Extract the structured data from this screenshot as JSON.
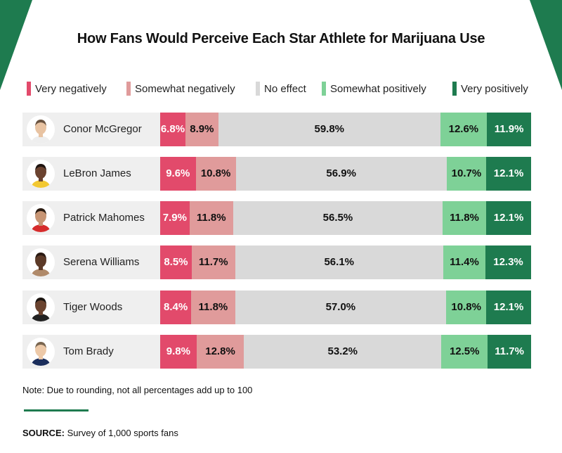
{
  "title": "How Fans Would Perceive Each Star Athlete for Marijuana Use",
  "colors": {
    "very_negatively": "#e24a6b",
    "somewhat_negatively": "#e09b9b",
    "no_effect": "#d9d9d9",
    "somewhat_positively": "#7ed197",
    "very_positively": "#1e7b4f",
    "corner": "#1e7b4f",
    "row_background": "#efefef"
  },
  "legend": [
    {
      "label": "Very negatively",
      "color_key": "very_negatively"
    },
    {
      "label": "Somewhat negatively",
      "color_key": "somewhat_negatively"
    },
    {
      "label": "No effect",
      "color_key": "no_effect"
    },
    {
      "label": "Somewhat positively",
      "color_key": "somewhat_positively"
    },
    {
      "label": "Very positively",
      "color_key": "very_positively"
    }
  ],
  "chart_data": {
    "type": "bar",
    "orientation": "horizontal",
    "stacked": true,
    "title": "How Fans Would Perceive Each Star Athlete for Marijuana Use",
    "categories": [
      "Conor McGregor",
      "LeBron James",
      "Patrick Mahomes",
      "Serena Williams",
      "Tiger Woods",
      "Tom Brady"
    ],
    "series": [
      {
        "name": "Very negatively",
        "values": [
          6.8,
          9.6,
          7.9,
          8.5,
          8.4,
          9.8
        ],
        "labels": [
          "6.8%",
          "9.6%",
          "7.9%",
          "8.5%",
          "8.4%",
          "9.8%"
        ]
      },
      {
        "name": "Somewhat negatively",
        "values": [
          8.9,
          10.8,
          11.8,
          11.7,
          11.8,
          12.8
        ],
        "labels": [
          "8.9%",
          "10.8%",
          "11.8%",
          "11.7%",
          "11.8%",
          "12.8%"
        ]
      },
      {
        "name": "No effect",
        "values": [
          59.8,
          56.9,
          56.5,
          56.1,
          57.0,
          53.2
        ],
        "labels": [
          "59.8%",
          "56.9%",
          "56.5%",
          "56.1%",
          "57.0%",
          "53.2%"
        ]
      },
      {
        "name": "Somewhat positively",
        "values": [
          12.6,
          10.7,
          11.8,
          11.4,
          10.8,
          12.5
        ],
        "labels": [
          "12.6%",
          "10.7%",
          "11.8%",
          "11.4%",
          "10.8%",
          "12.5%"
        ]
      },
      {
        "name": "Very positively",
        "values": [
          11.9,
          12.1,
          12.1,
          12.3,
          12.1,
          11.7
        ],
        "labels": [
          "11.9%",
          "12.1%",
          "12.1%",
          "12.3%",
          "12.1%",
          "11.7%"
        ]
      }
    ],
    "legend_position": "top",
    "grid": false
  },
  "note": "Note: Due to rounding, not all percentages add up to 100",
  "source": {
    "label": "SOURCE:",
    "text": " Survey of 1,000 sports fans"
  }
}
